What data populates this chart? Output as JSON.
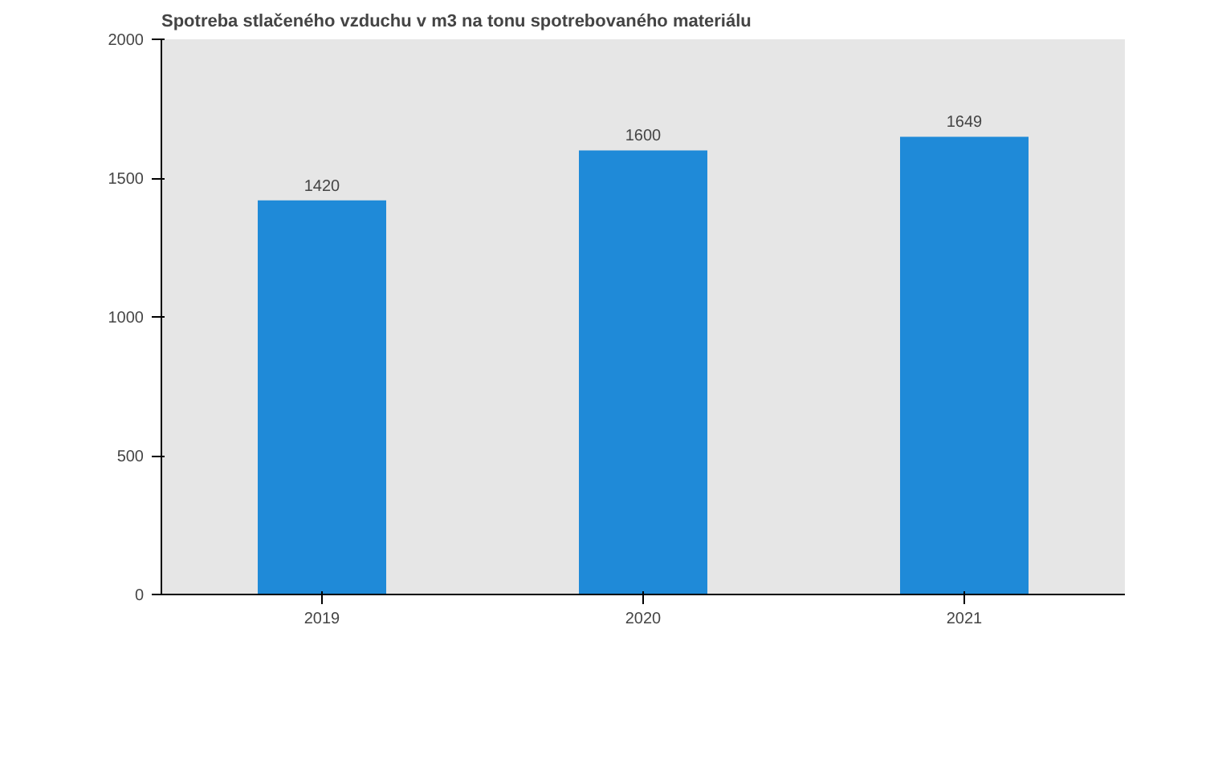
{
  "chart_data": {
    "type": "bar",
    "title": "Spotreba stlačeného vzduchu v m3 na tonu spotrebovaného materiálu",
    "categories": [
      "2019",
      "2020",
      "2021"
    ],
    "values": [
      1420,
      1600,
      1649
    ],
    "color": "#1f8ad8",
    "ylim": [
      0,
      2000
    ],
    "yticks": [
      0,
      500,
      1000,
      1500,
      2000
    ],
    "data_labels": true
  }
}
